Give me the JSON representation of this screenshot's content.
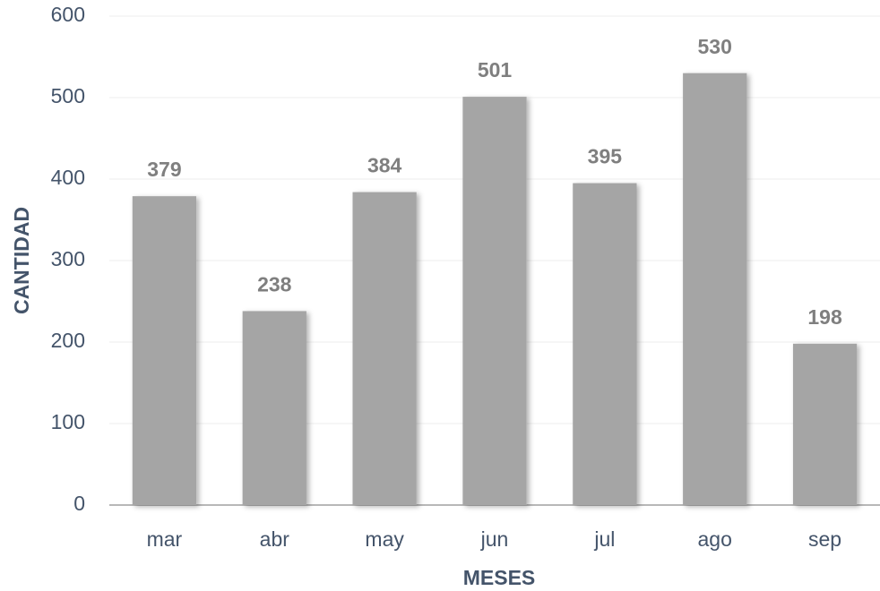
{
  "chart_data": {
    "type": "bar",
    "x_label": "MESES",
    "y_label": "CANTIDAD",
    "categories": [
      "mar",
      "abr",
      "may",
      "jun",
      "jul",
      "ago",
      "sep"
    ],
    "values": [
      379,
      238,
      384,
      501,
      395,
      530,
      198
    ],
    "color": "#a5a5a5",
    "ylim": [
      0,
      600
    ],
    "yticks": [
      0,
      100,
      200,
      300,
      400,
      500,
      600
    ],
    "grid": true
  }
}
